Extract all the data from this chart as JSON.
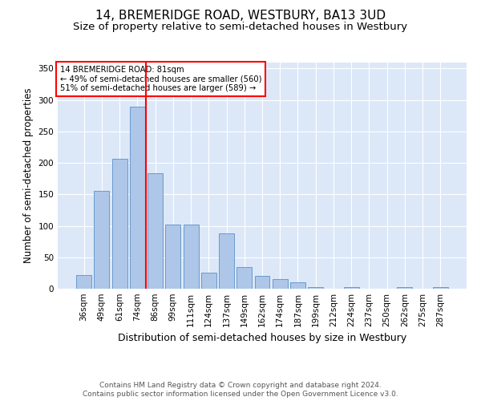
{
  "title": "14, BREMERIDGE ROAD, WESTBURY, BA13 3UD",
  "subtitle": "Size of property relative to semi-detached houses in Westbury",
  "xlabel": "Distribution of semi-detached houses by size in Westbury",
  "ylabel": "Number of semi-detached properties",
  "annotation_line1": "14 BREMERIDGE ROAD: 81sqm",
  "annotation_line2": "← 49% of semi-detached houses are smaller (560)",
  "annotation_line3": "51% of semi-detached houses are larger (589) →",
  "footer1": "Contains HM Land Registry data © Crown copyright and database right 2024.",
  "footer2": "Contains public sector information licensed under the Open Government Licence v3.0.",
  "categories": [
    "36sqm",
    "49sqm",
    "61sqm",
    "74sqm",
    "86sqm",
    "99sqm",
    "111sqm",
    "124sqm",
    "137sqm",
    "149sqm",
    "162sqm",
    "174sqm",
    "187sqm",
    "199sqm",
    "212sqm",
    "224sqm",
    "237sqm",
    "250sqm",
    "262sqm",
    "275sqm",
    "287sqm"
  ],
  "values": [
    22,
    155,
    207,
    289,
    184,
    102,
    102,
    25,
    88,
    35,
    20,
    15,
    10,
    3,
    0,
    3,
    0,
    0,
    3,
    0,
    3
  ],
  "bar_color": "#aec6e8",
  "bar_edge_color": "#5a90c8",
  "marker_color": "red",
  "background_color": "#dce8f8",
  "ylim": [
    0,
    360
  ],
  "yticks": [
    0,
    50,
    100,
    150,
    200,
    250,
    300,
    350
  ],
  "title_fontsize": 11,
  "subtitle_fontsize": 9.5,
  "axis_label_fontsize": 8.5,
  "tick_fontsize": 7.5,
  "footer_fontsize": 6.5
}
